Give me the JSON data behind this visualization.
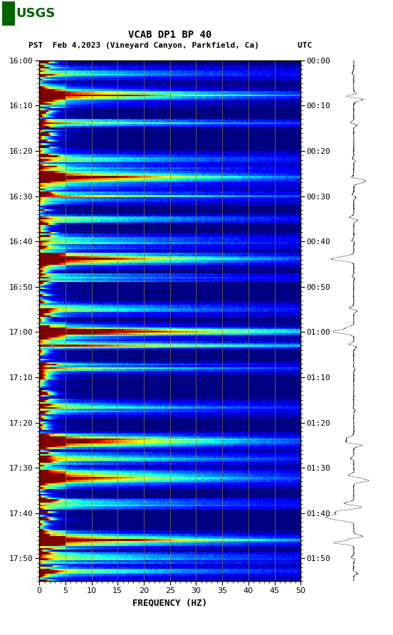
{
  "title_line1": "VCAB DP1 BP 40",
  "title_line2": "PST  Feb 4,2023 (Vineyard Canyon, Parkfield, Ca)        UTC",
  "xlabel": "FREQUENCY (HZ)",
  "freq_min": 0,
  "freq_max": 50,
  "ytick_pst": [
    "16:00",
    "16:10",
    "16:20",
    "16:30",
    "16:40",
    "16:50",
    "17:00",
    "17:10",
    "17:20",
    "17:30",
    "17:40",
    "17:50"
  ],
  "ytick_utc": [
    "00:00",
    "00:10",
    "00:20",
    "00:30",
    "00:40",
    "00:50",
    "01:00",
    "01:10",
    "01:20",
    "01:30",
    "01:40",
    "01:50"
  ],
  "xticks": [
    0,
    5,
    10,
    15,
    20,
    25,
    30,
    35,
    40,
    45,
    50
  ],
  "vertical_grid_lines": [
    5,
    10,
    15,
    20,
    25,
    30,
    35,
    40,
    45
  ],
  "background_color": "#ffffff",
  "logo_color": "#006400",
  "title_fontsize": 10,
  "tick_fontsize": 8,
  "label_fontsize": 9,
  "total_minutes": 115,
  "event_times_min": [
    3,
    8,
    14,
    22,
    26,
    30,
    35,
    40,
    44,
    48,
    55,
    60,
    63,
    68,
    77,
    84,
    88,
    92,
    98,
    106,
    110,
    113
  ],
  "major_events": [
    8,
    26,
    44,
    60,
    84,
    92,
    106
  ],
  "dark_events": [
    8,
    26,
    44,
    60,
    84,
    92,
    106
  ],
  "wave_seed": 99,
  "spec_seed": 42
}
